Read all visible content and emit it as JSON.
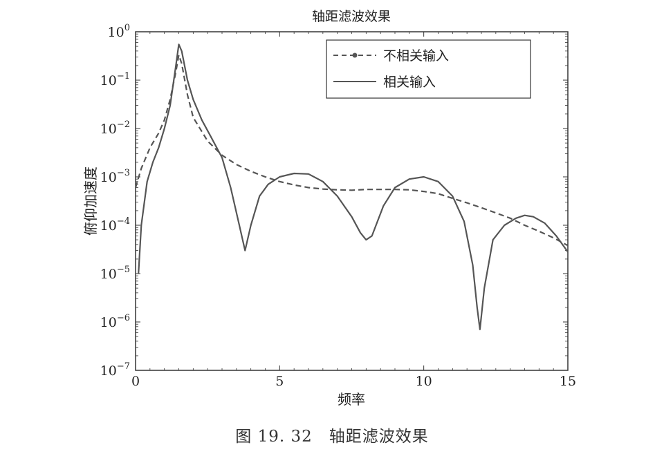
{
  "caption": "图 19. 32　轴距滤波效果",
  "chart_data": {
    "type": "line",
    "title": "轴距滤波效果",
    "xlabel": "频率",
    "ylabel": "俯仰加速度",
    "xlim": [
      0,
      15
    ],
    "ylim": [
      1e-07,
      1
    ],
    "yscale": "log",
    "xticks": [
      0,
      5,
      10,
      15
    ],
    "yticks": [
      {
        "base": "10",
        "exp": "0"
      },
      {
        "base": "10",
        "exp": "−1"
      },
      {
        "base": "10",
        "exp": "−2"
      },
      {
        "base": "10",
        "exp": "−3"
      },
      {
        "base": "10",
        "exp": "−4"
      },
      {
        "base": "10",
        "exp": "−5"
      },
      {
        "base": "10",
        "exp": "−6"
      },
      {
        "base": "10",
        "exp": "−7"
      }
    ],
    "grid": false,
    "legend_position": "top-right",
    "series": [
      {
        "name": "不相关输入",
        "style": "dashed",
        "color": "#555555",
        "x": [
          0.0,
          0.2,
          0.5,
          0.8,
          1.0,
          1.2,
          1.4,
          1.5,
          1.6,
          1.8,
          2.0,
          2.5,
          3.0,
          3.5,
          4.0,
          4.5,
          5.0,
          5.5,
          6.0,
          6.5,
          7.0,
          7.5,
          8.0,
          8.5,
          9.0,
          9.5,
          10.0,
          10.5,
          11.0,
          11.5,
          12.0,
          12.5,
          13.0,
          13.5,
          14.0,
          14.5,
          15.0
        ],
        "y": [
          0.0006,
          0.0015,
          0.004,
          0.008,
          0.015,
          0.04,
          0.15,
          0.33,
          0.22,
          0.05,
          0.017,
          0.0055,
          0.0028,
          0.0018,
          0.0013,
          0.001,
          0.0008,
          0.00068,
          0.0006,
          0.00056,
          0.00054,
          0.00053,
          0.00055,
          0.00055,
          0.00055,
          0.00054,
          0.0005,
          0.00045,
          0.00036,
          0.00029,
          0.00023,
          0.00018,
          0.00014,
          0.0001,
          7.5e-05,
          5.5e-05,
          3.8e-05
        ]
      },
      {
        "name": "相关输入",
        "style": "solid",
        "color": "#555555",
        "x": [
          0.1,
          0.2,
          0.4,
          0.6,
          0.8,
          1.0,
          1.2,
          1.4,
          1.5,
          1.6,
          1.8,
          2.0,
          2.3,
          2.6,
          3.0,
          3.3,
          3.6,
          3.8,
          4.0,
          4.3,
          4.6,
          5.0,
          5.5,
          6.0,
          6.5,
          7.0,
          7.5,
          7.8,
          8.0,
          8.2,
          8.6,
          9.0,
          9.5,
          10.0,
          10.5,
          11.0,
          11.4,
          11.7,
          11.85,
          11.95,
          12.1,
          12.4,
          12.8,
          13.2,
          13.5,
          13.8,
          14.2,
          14.6,
          15.0
        ],
        "y": [
          1e-05,
          0.0001,
          0.0008,
          0.002,
          0.004,
          0.01,
          0.03,
          0.2,
          0.55,
          0.4,
          0.1,
          0.04,
          0.015,
          0.007,
          0.0025,
          0.0006,
          0.0001,
          3e-05,
          0.0001,
          0.0004,
          0.0007,
          0.001,
          0.00118,
          0.00115,
          0.0008,
          0.0004,
          0.00015,
          7e-05,
          5e-05,
          6e-05,
          0.00025,
          0.0006,
          0.0009,
          0.001,
          0.0008,
          0.0004,
          0.00012,
          1.5e-05,
          2e-06,
          7e-07,
          5e-06,
          5e-05,
          0.0001,
          0.00014,
          0.00016,
          0.00015,
          0.00011,
          6e-05,
          2.8e-05
        ]
      }
    ]
  }
}
